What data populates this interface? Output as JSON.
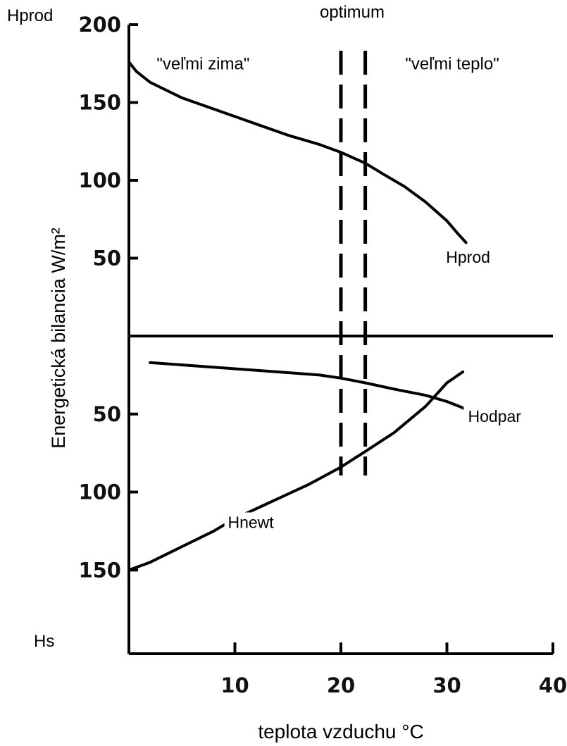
{
  "chart_data": {
    "type": "line",
    "title": "",
    "xlabel": "teplota vzduchu °C",
    "ylabel": "Energetická bilancia W/m²",
    "xlim": [
      0,
      40
    ],
    "ylim_top": [
      0,
      200
    ],
    "ylim_bottom": [
      0,
      200
    ],
    "x_ticks": [
      {
        "value": 10,
        "label": "10"
      },
      {
        "value": 20,
        "label": "20"
      },
      {
        "value": 30,
        "label": "30"
      },
      {
        "value": 40,
        "label": "40"
      }
    ],
    "y_ticks_top": [
      {
        "value": 200,
        "label": "200"
      },
      {
        "value": 150,
        "label": "150"
      },
      {
        "value": 100,
        "label": "100"
      },
      {
        "value": 50,
        "label": "50"
      }
    ],
    "y_ticks_bottom": [
      {
        "value": 50,
        "label": "50"
      },
      {
        "value": 100,
        "label": "100"
      },
      {
        "value": 150,
        "label": "150"
      }
    ],
    "axis_end_labels": {
      "top": "Hprod",
      "bottom": "Hs"
    },
    "optimum": {
      "label": "optimum",
      "x_range": [
        20,
        22.3
      ]
    },
    "regions": [
      {
        "label": "\"veľmi zima\"",
        "x": 7,
        "y": 175
      },
      {
        "label": "\"veľmi teplo\"",
        "x": 30.5,
        "y": 175
      }
    ],
    "series": [
      {
        "name": "Hprod",
        "side": "top",
        "label_at": {
          "x": 32,
          "y": 47
        },
        "points": [
          [
            0,
            176
          ],
          [
            0.7,
            170
          ],
          [
            2,
            163
          ],
          [
            5,
            153
          ],
          [
            10,
            141
          ],
          [
            15,
            129
          ],
          [
            18,
            123
          ],
          [
            20,
            118
          ],
          [
            22.3,
            111
          ],
          [
            24,
            104
          ],
          [
            26,
            96
          ],
          [
            28,
            86
          ],
          [
            30,
            74
          ],
          [
            31,
            66
          ],
          [
            31.8,
            60
          ]
        ]
      },
      {
        "name": "Hodpar",
        "side": "bottom",
        "label_at": {
          "x": 34.5,
          "y": 55
        },
        "points": [
          [
            2,
            17
          ],
          [
            6,
            19
          ],
          [
            10,
            21
          ],
          [
            14,
            23
          ],
          [
            18,
            25
          ],
          [
            20,
            27
          ],
          [
            22.3,
            30
          ],
          [
            25,
            34
          ],
          [
            28,
            38
          ],
          [
            30,
            42
          ],
          [
            31.5,
            46
          ],
          [
            32.3,
            50
          ]
        ]
      },
      {
        "name": "Hnewt",
        "side": "bottom",
        "label_at": {
          "x": 11.5,
          "y": 123
        },
        "points": [
          [
            0,
            150
          ],
          [
            2,
            145
          ],
          [
            5,
            135
          ],
          [
            8,
            125
          ],
          [
            10,
            117
          ],
          [
            13.5,
            106
          ],
          [
            17,
            95
          ],
          [
            20,
            84
          ],
          [
            22.3,
            74
          ],
          [
            25,
            62
          ],
          [
            28,
            45
          ],
          [
            30,
            30
          ],
          [
            31.5,
            23
          ]
        ]
      }
    ]
  }
}
